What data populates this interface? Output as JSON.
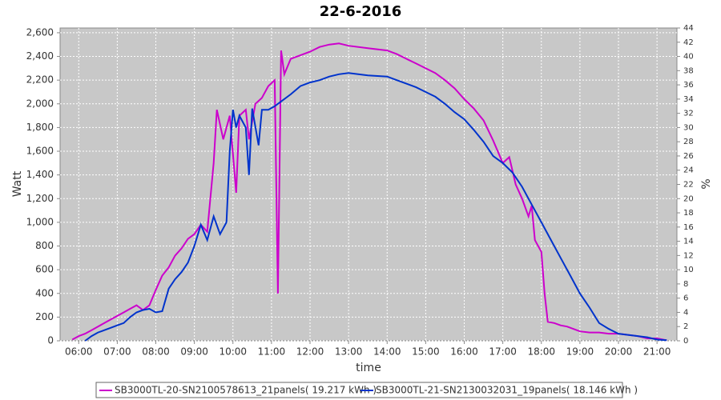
{
  "chart_data": {
    "type": "line",
    "title": "22-6-2016",
    "x_label": "time",
    "y_label": "Watt",
    "y2_label": "%",
    "xlim": [
      "05:31",
      "21:31"
    ],
    "xticks": [
      "06:00",
      "07:00",
      "08:00",
      "09:00",
      "10:00",
      "11:00",
      "12:00",
      "13:00",
      "14:00",
      "15:00",
      "16:00",
      "17:00",
      "18:00",
      "19:00",
      "20:00",
      "21:00"
    ],
    "ylim": [
      0,
      2640
    ],
    "yticks": [
      0,
      200,
      400,
      600,
      800,
      {
        "value": 1000,
        "label": "1,000"
      },
      {
        "value": 1200,
        "label": "1,200"
      },
      {
        "value": 1400,
        "label": "1,400"
      },
      {
        "value": 1600,
        "label": "1,600"
      },
      {
        "value": 1800,
        "label": "1,800"
      },
      {
        "value": 2000,
        "label": "2,000"
      },
      {
        "value": 2200,
        "label": "2,200"
      },
      {
        "value": 2400,
        "label": "2,400"
      },
      {
        "value": 2600,
        "label": "2,600"
      }
    ],
    "y2lim": [
      0,
      44
    ],
    "y2ticks": [
      0,
      2,
      4,
      6,
      8,
      10,
      12,
      14,
      16,
      18,
      20,
      22,
      24,
      26,
      28,
      30,
      32,
      34,
      36,
      38,
      40,
      42,
      44
    ],
    "grid": true,
    "legend": "bottom",
    "series": [
      {
        "name": "SB3000TL-20-SN2100578613_21panels( 19.217 kWh )",
        "color": "#cc00cc",
        "x": [
          "05:50",
          "06:00",
          "06:10",
          "06:20",
          "06:30",
          "06:40",
          "06:50",
          "07:00",
          "07:10",
          "07:20",
          "07:30",
          "07:40",
          "07:50",
          "08:00",
          "08:10",
          "08:20",
          "08:30",
          "08:40",
          "08:50",
          "09:00",
          "09:10",
          "09:20",
          "09:30",
          "09:35",
          "09:45",
          "09:55",
          "10:05",
          "10:10",
          "10:20",
          "10:25",
          "10:35",
          "10:45",
          "10:55",
          "11:05",
          "11:10",
          "11:15",
          "11:20",
          "11:30",
          "11:45",
          "12:00",
          "12:15",
          "12:30",
          "12:45",
          "13:00",
          "13:30",
          "14:00",
          "14:15",
          "14:30",
          "14:45",
          "15:00",
          "15:15",
          "15:30",
          "15:45",
          "16:00",
          "16:15",
          "16:30",
          "16:45",
          "17:00",
          "17:10",
          "17:20",
          "17:30",
          "17:40",
          "17:45",
          "17:50",
          "18:00",
          "18:05",
          "18:10",
          "18:20",
          "18:30",
          "18:40",
          "18:50",
          "19:00",
          "19:15",
          "19:30",
          "19:45",
          "20:00",
          "20:15",
          "20:30",
          "20:45",
          "21:00",
          "21:15"
        ],
        "values": [
          10,
          40,
          60,
          90,
          120,
          150,
          180,
          210,
          240,
          270,
          300,
          260,
          300,
          430,
          550,
          620,
          720,
          780,
          860,
          900,
          980,
          920,
          1500,
          1950,
          1700,
          1900,
          1250,
          1900,
          1950,
          1700,
          2000,
          2050,
          2150,
          2200,
          400,
          2450,
          2250,
          2380,
          2410,
          2440,
          2480,
          2500,
          2510,
          2490,
          2470,
          2450,
          2420,
          2380,
          2340,
          2300,
          2260,
          2200,
          2130,
          2040,
          1960,
          1860,
          1690,
          1500,
          1550,
          1320,
          1200,
          1050,
          1140,
          850,
          750,
          400,
          160,
          150,
          130,
          120,
          100,
          80,
          70,
          70,
          60,
          60,
          50,
          40,
          20,
          20,
          5
        ]
      },
      {
        "name": "SB3000TL-21-SN2130032031_19panels( 18.146 kWh )",
        "color": "#0033cc",
        "x": [
          "06:10",
          "06:20",
          "06:30",
          "06:40",
          "06:50",
          "07:00",
          "07:10",
          "07:20",
          "07:30",
          "07:40",
          "07:50",
          "08:00",
          "08:10",
          "08:20",
          "08:30",
          "08:40",
          "08:50",
          "09:00",
          "09:10",
          "09:20",
          "09:30",
          "09:40",
          "09:50",
          "09:55",
          "10:00",
          "10:05",
          "10:10",
          "10:20",
          "10:25",
          "10:30",
          "10:40",
          "10:45",
          "10:55",
          "11:05",
          "11:15",
          "11:30",
          "11:45",
          "12:00",
          "12:15",
          "12:30",
          "12:45",
          "13:00",
          "13:30",
          "14:00",
          "14:15",
          "14:30",
          "14:45",
          "15:00",
          "15:15",
          "15:30",
          "15:45",
          "16:00",
          "16:15",
          "16:30",
          "16:45",
          "17:00",
          "17:15",
          "17:30",
          "17:45",
          "18:00",
          "18:15",
          "18:30",
          "18:45",
          "19:00",
          "19:15",
          "19:30",
          "19:45",
          "20:00",
          "20:15",
          "20:30",
          "20:45",
          "21:00",
          "21:15"
        ],
        "values": [
          0,
          40,
          70,
          90,
          110,
          130,
          150,
          200,
          240,
          260,
          270,
          240,
          250,
          440,
          520,
          580,
          660,
          800,
          980,
          850,
          1050,
          900,
          1000,
          1600,
          1950,
          1800,
          1900,
          1800,
          1400,
          1960,
          1650,
          1950,
          1950,
          1980,
          2020,
          2080,
          2150,
          2180,
          2200,
          2230,
          2250,
          2260,
          2240,
          2230,
          2200,
          2170,
          2140,
          2100,
          2060,
          2000,
          1930,
          1870,
          1780,
          1680,
          1560,
          1500,
          1420,
          1300,
          1150,
          1000,
          850,
          700,
          550,
          400,
          280,
          150,
          100,
          60,
          50,
          40,
          30,
          10,
          5
        ]
      }
    ]
  }
}
